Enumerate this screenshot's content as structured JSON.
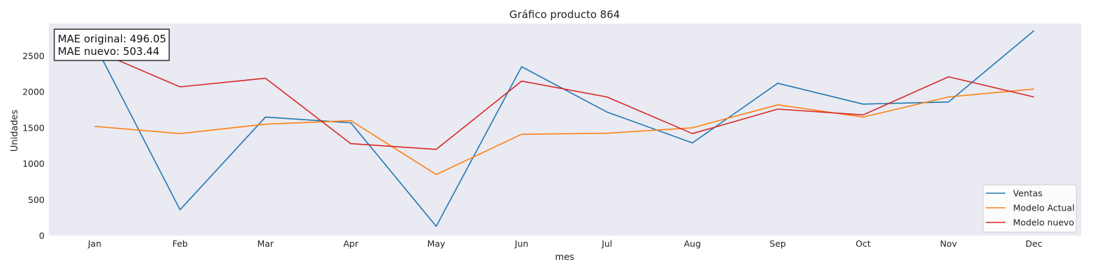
{
  "chart_data": {
    "type": "line",
    "title": "Gráfico producto 864",
    "xlabel": "mes",
    "ylabel": "Unidades",
    "categories": [
      "Jan",
      "Feb",
      "Mar",
      "Apr",
      "May",
      "Jun",
      "Jul",
      "Aug",
      "Sep",
      "Oct",
      "Nov",
      "Dec"
    ],
    "yticks": [
      0,
      500,
      1000,
      1500,
      2000,
      2500
    ],
    "ylim": [
      0,
      2950
    ],
    "grid": false,
    "legend_position": "bottom-right",
    "series": [
      {
        "name": "Ventas",
        "color": "#1f77b4",
        "values": [
          2660,
          360,
          1650,
          1570,
          130,
          2350,
          1720,
          1290,
          2120,
          1830,
          1860,
          2850
        ]
      },
      {
        "name": "Modelo Actual",
        "color": "#ff7f0e",
        "values": [
          1520,
          1420,
          1550,
          1600,
          850,
          1410,
          1425,
          1500,
          1820,
          1650,
          1930,
          2040
        ]
      },
      {
        "name": "Modelo nuevo",
        "color": "#d62728",
        "values": [
          2580,
          2070,
          2190,
          1280,
          1200,
          2150,
          1930,
          1420,
          1760,
          1680,
          2210,
          1930
        ]
      }
    ],
    "annotation": {
      "line1": "MAE original: 496.05",
      "line2": "MAE nuevo: 503.44"
    },
    "plot_background": "#eaeaf2"
  }
}
